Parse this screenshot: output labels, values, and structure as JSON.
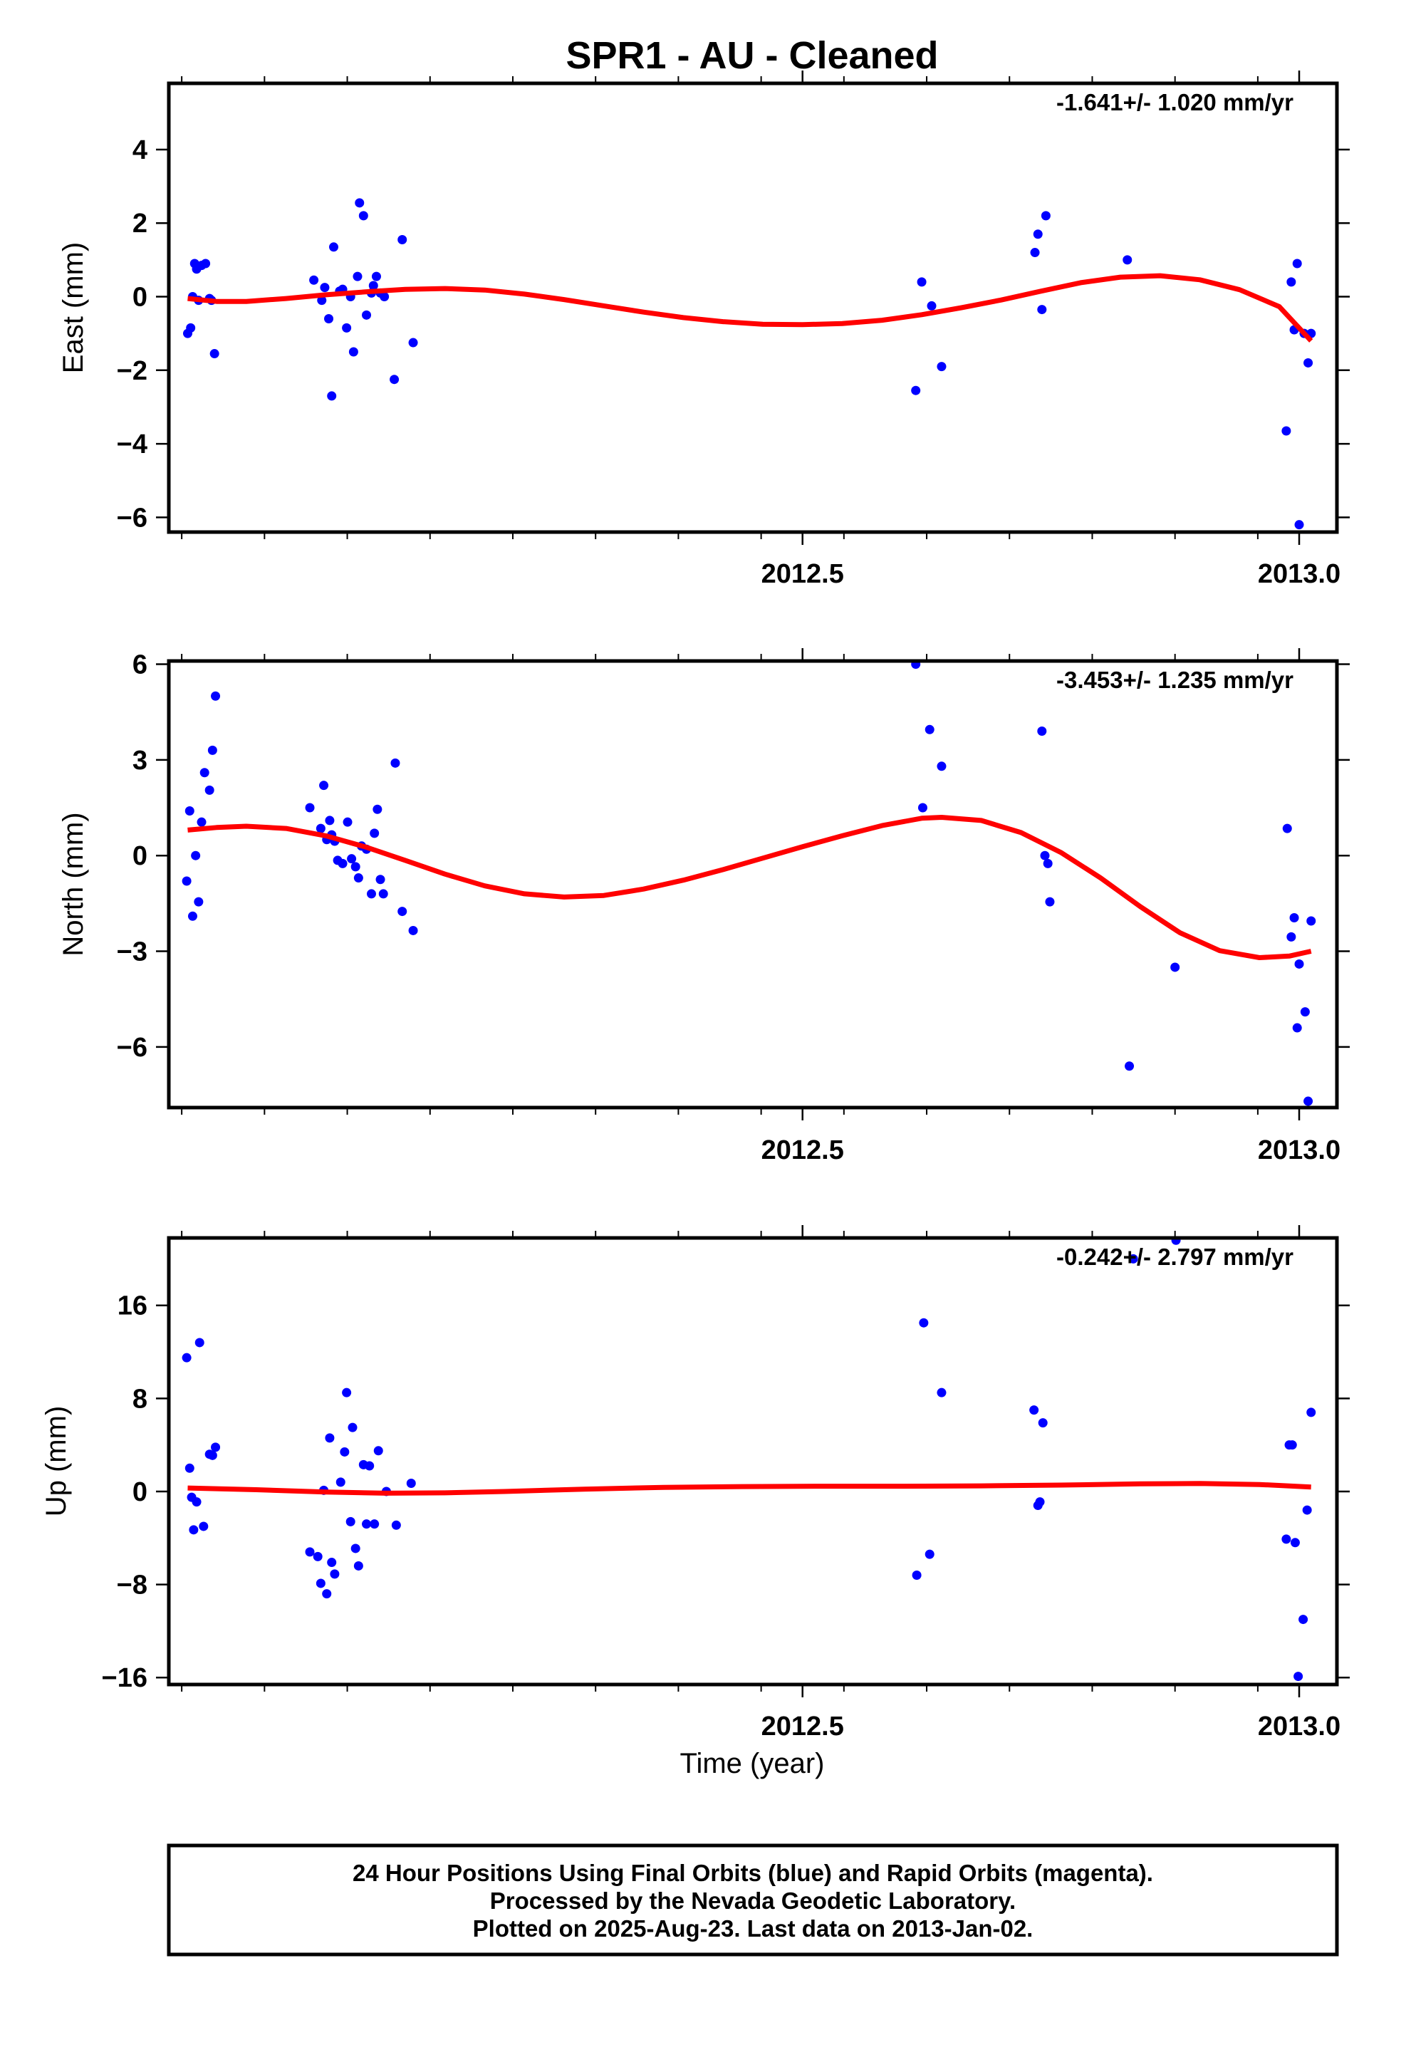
{
  "title": "SPR1  - AU - Cleaned",
  "xlabel": "Time (year)",
  "footer": {
    "line1": "24 Hour Positions Using Final Orbits (blue) and Rapid Orbits (magenta).",
    "line2": "Processed by the Nevada Geodetic Laboratory.",
    "line3": "Plotted on 2025-Aug-23. Last data on 2013-Jan-02."
  },
  "colors": {
    "points": "#0000ff",
    "fit": "#ff0000",
    "frame": "#000000"
  },
  "chart_data": [
    {
      "type": "scatter",
      "name": "east",
      "ylabel": "East (mm)",
      "rate_label": "-1.641+/- 1.020 mm/yr",
      "xlim": [
        2011.862,
        2013.038
      ],
      "ylim": [
        -6.4,
        5.8
      ],
      "yticks": [
        -6,
        -4,
        -2,
        0,
        2,
        4
      ],
      "ytick_labels": [
        "−6",
        "−4",
        "−2",
        "0",
        "2",
        "4"
      ],
      "xticks": [
        2012.5,
        2013.0
      ],
      "xtick_labels": [
        "2012.5",
        "2013.0"
      ],
      "minor_xticks": [
        1.0
      ],
      "points": [
        [
          2011.881,
          -1.0
        ],
        [
          2011.884,
          -0.85
        ],
        [
          2011.886,
          0.0
        ],
        [
          2011.888,
          0.9
        ],
        [
          2011.89,
          0.75
        ],
        [
          2011.892,
          -0.1
        ],
        [
          2011.895,
          0.85
        ],
        [
          2011.899,
          0.9
        ],
        [
          2011.903,
          -0.05
        ],
        [
          2011.905,
          -0.1
        ],
        [
          2011.908,
          -1.55
        ],
        [
          2012.008,
          0.45
        ],
        [
          2012.016,
          -0.1
        ],
        [
          2012.019,
          0.25
        ],
        [
          2012.023,
          -0.6
        ],
        [
          2012.026,
          -2.7
        ],
        [
          2012.028,
          1.35
        ],
        [
          2012.034,
          0.15
        ],
        [
          2012.037,
          0.2
        ],
        [
          2012.041,
          -0.85
        ],
        [
          2012.045,
          0.0
        ],
        [
          2012.048,
          -1.5
        ],
        [
          2012.052,
          0.55
        ],
        [
          2012.054,
          2.55
        ],
        [
          2012.058,
          2.2
        ],
        [
          2012.061,
          -0.5
        ],
        [
          2012.066,
          0.1
        ],
        [
          2012.068,
          0.3
        ],
        [
          2012.071,
          0.55
        ],
        [
          2012.075,
          0.1
        ],
        [
          2012.079,
          0.0
        ],
        [
          2012.089,
          -2.25
        ],
        [
          2012.097,
          1.55
        ],
        [
          2012.108,
          -1.25
        ],
        [
          2012.614,
          -2.55
        ],
        [
          2012.62,
          0.4
        ],
        [
          2012.63,
          -0.25
        ],
        [
          2012.64,
          -1.9
        ],
        [
          2012.734,
          1.2
        ],
        [
          2012.737,
          1.7
        ],
        [
          2012.741,
          -0.35
        ],
        [
          2012.745,
          2.2
        ],
        [
          2012.827,
          1.0
        ],
        [
          2012.987,
          -3.65
        ],
        [
          2012.992,
          0.4
        ],
        [
          2012.995,
          -0.9
        ],
        [
          2012.998,
          0.9
        ],
        [
          2013.0,
          -6.2
        ],
        [
          2013.005,
          -1.0
        ],
        [
          2013.009,
          -1.8
        ],
        [
          2013.012,
          -1.0
        ]
      ],
      "fit": [
        [
          2011.881,
          -0.05
        ],
        [
          2011.91,
          -0.13
        ],
        [
          2011.94,
          -0.13
        ],
        [
          2011.98,
          -0.05
        ],
        [
          2012.02,
          0.05
        ],
        [
          2012.06,
          0.13
        ],
        [
          2012.1,
          0.2
        ],
        [
          2012.14,
          0.22
        ],
        [
          2012.18,
          0.18
        ],
        [
          2012.22,
          0.07
        ],
        [
          2012.26,
          -0.08
        ],
        [
          2012.3,
          -0.25
        ],
        [
          2012.34,
          -0.42
        ],
        [
          2012.38,
          -0.57
        ],
        [
          2012.42,
          -0.68
        ],
        [
          2012.46,
          -0.75
        ],
        [
          2012.5,
          -0.76
        ],
        [
          2012.54,
          -0.73
        ],
        [
          2012.58,
          -0.64
        ],
        [
          2012.62,
          -0.49
        ],
        [
          2012.66,
          -0.3
        ],
        [
          2012.7,
          -0.09
        ],
        [
          2012.74,
          0.15
        ],
        [
          2012.78,
          0.38
        ],
        [
          2012.82,
          0.53
        ],
        [
          2012.86,
          0.57
        ],
        [
          2012.9,
          0.46
        ],
        [
          2012.94,
          0.19
        ],
        [
          2012.98,
          -0.27
        ],
        [
          2013.012,
          -1.2
        ]
      ]
    },
    {
      "type": "scatter",
      "name": "north",
      "ylabel": "North (mm)",
      "rate_label": "-3.453+/- 1.235 mm/yr",
      "xlim": [
        2011.862,
        2013.038
      ],
      "ylim": [
        -7.9,
        6.1
      ],
      "yticks": [
        -6,
        -3,
        0,
        3,
        6
      ],
      "ytick_labels": [
        "−6",
        "−3",
        "0",
        "3",
        "6"
      ],
      "xticks": [
        2012.5,
        2013.0
      ],
      "xtick_labels": [
        "2012.5",
        "2013.0"
      ],
      "points": [
        [
          2011.88,
          -0.8
        ],
        [
          2011.883,
          1.4
        ],
        [
          2011.886,
          -1.9
        ],
        [
          2011.889,
          0.0
        ],
        [
          2011.892,
          -1.45
        ],
        [
          2011.895,
          1.05
        ],
        [
          2011.898,
          2.6
        ],
        [
          2011.903,
          2.05
        ],
        [
          2011.906,
          3.3
        ],
        [
          2011.909,
          5.0
        ],
        [
          2012.004,
          1.5
        ],
        [
          2012.015,
          0.85
        ],
        [
          2012.018,
          2.2
        ],
        [
          2012.021,
          0.5
        ],
        [
          2012.024,
          1.1
        ],
        [
          2012.026,
          0.65
        ],
        [
          2012.029,
          0.45
        ],
        [
          2012.032,
          -0.15
        ],
        [
          2012.037,
          -0.25
        ],
        [
          2012.042,
          1.05
        ],
        [
          2012.046,
          -0.1
        ],
        [
          2012.05,
          -0.35
        ],
        [
          2012.053,
          -0.7
        ],
        [
          2012.056,
          0.3
        ],
        [
          2012.061,
          0.2
        ],
        [
          2012.066,
          -1.2
        ],
        [
          2012.069,
          0.7
        ],
        [
          2012.072,
          1.45
        ],
        [
          2012.075,
          -0.75
        ],
        [
          2012.078,
          -1.2
        ],
        [
          2012.09,
          2.9
        ],
        [
          2012.097,
          -1.75
        ],
        [
          2012.108,
          -2.35
        ],
        [
          2012.614,
          6.0
        ],
        [
          2012.621,
          1.5
        ],
        [
          2012.628,
          3.95
        ],
        [
          2012.64,
          2.8
        ],
        [
          2012.741,
          3.9
        ],
        [
          2012.744,
          0.0
        ],
        [
          2012.747,
          -0.25
        ],
        [
          2012.749,
          -1.45
        ],
        [
          2012.829,
          -6.6
        ],
        [
          2012.875,
          -3.5
        ],
        [
          2012.988,
          0.85
        ],
        [
          2012.992,
          -2.55
        ],
        [
          2012.995,
          -1.95
        ],
        [
          2012.998,
          -5.4
        ],
        [
          2013.0,
          -3.4
        ],
        [
          2013.006,
          -4.9
        ],
        [
          2013.009,
          -7.7
        ],
        [
          2013.012,
          -2.05
        ]
      ],
      "fit": [
        [
          2011.881,
          0.8
        ],
        [
          2011.91,
          0.88
        ],
        [
          2011.94,
          0.92
        ],
        [
          2011.98,
          0.85
        ],
        [
          2012.02,
          0.62
        ],
        [
          2012.06,
          0.27
        ],
        [
          2012.1,
          -0.15
        ],
        [
          2012.14,
          -0.58
        ],
        [
          2012.18,
          -0.95
        ],
        [
          2012.22,
          -1.2
        ],
        [
          2012.26,
          -1.3
        ],
        [
          2012.3,
          -1.25
        ],
        [
          2012.34,
          -1.05
        ],
        [
          2012.38,
          -0.77
        ],
        [
          2012.42,
          -0.44
        ],
        [
          2012.46,
          -0.08
        ],
        [
          2012.5,
          0.28
        ],
        [
          2012.54,
          0.62
        ],
        [
          2012.58,
          0.94
        ],
        [
          2012.62,
          1.17
        ],
        [
          2012.64,
          1.2
        ],
        [
          2012.68,
          1.1
        ],
        [
          2012.72,
          0.72
        ],
        [
          2012.76,
          0.1
        ],
        [
          2012.8,
          -0.7
        ],
        [
          2012.84,
          -1.6
        ],
        [
          2012.88,
          -2.42
        ],
        [
          2012.92,
          -2.98
        ],
        [
          2012.96,
          -3.2
        ],
        [
          2012.99,
          -3.15
        ],
        [
          2013.012,
          -3.0
        ]
      ]
    },
    {
      "type": "scatter",
      "name": "up",
      "ylabel": "Up (mm)",
      "rate_label": "-0.242+/- 2.797 mm/yr",
      "xlim": [
        2011.862,
        2013.038
      ],
      "ylim": [
        -16.6,
        21.8
      ],
      "yticks": [
        -16,
        -8,
        0,
        8,
        16
      ],
      "ytick_labels": [
        "−16",
        "−8",
        "0",
        "8",
        "16"
      ],
      "xticks": [
        2012.5,
        2013.0
      ],
      "xtick_labels": [
        "2012.5",
        "2013.0"
      ],
      "points": [
        [
          2011.88,
          11.5
        ],
        [
          2011.883,
          2.0
        ],
        [
          2011.885,
          -0.5
        ],
        [
          2011.887,
          -3.3
        ],
        [
          2011.89,
          -0.9
        ],
        [
          2011.893,
          12.8
        ],
        [
          2011.897,
          -3.0
        ],
        [
          2011.903,
          3.2
        ],
        [
          2011.906,
          3.1
        ],
        [
          2011.909,
          3.8
        ],
        [
          2012.004,
          -5.2
        ],
        [
          2012.012,
          -5.6
        ],
        [
          2012.015,
          -7.9
        ],
        [
          2012.018,
          0.1
        ],
        [
          2012.021,
          -8.8
        ],
        [
          2012.024,
          4.6
        ],
        [
          2012.026,
          -6.1
        ],
        [
          2012.029,
          -7.1
        ],
        [
          2012.035,
          0.8
        ],
        [
          2012.039,
          3.4
        ],
        [
          2012.041,
          8.5
        ],
        [
          2012.045,
          -2.6
        ],
        [
          2012.047,
          5.5
        ],
        [
          2012.05,
          -4.9
        ],
        [
          2012.053,
          -6.4
        ],
        [
          2012.058,
          2.3
        ],
        [
          2012.061,
          -2.8
        ],
        [
          2012.064,
          2.2
        ],
        [
          2012.069,
          -2.8
        ],
        [
          2012.073,
          3.5
        ],
        [
          2012.081,
          0.0
        ],
        [
          2012.091,
          -2.9
        ],
        [
          2012.106,
          0.7
        ],
        [
          2012.615,
          -7.2
        ],
        [
          2012.622,
          14.5
        ],
        [
          2012.628,
          -5.4
        ],
        [
          2012.64,
          8.5
        ],
        [
          2012.733,
          7.0
        ],
        [
          2012.737,
          -1.2
        ],
        [
          2012.739,
          -0.9
        ],
        [
          2012.742,
          5.9
        ],
        [
          2012.833,
          20.0
        ],
        [
          2012.876,
          21.6
        ],
        [
          2012.987,
          -4.1
        ],
        [
          2012.99,
          4.0
        ],
        [
          2012.993,
          4.0
        ],
        [
          2012.996,
          -4.4
        ],
        [
          2012.999,
          -15.9
        ],
        [
          2013.004,
          -11.0
        ],
        [
          2013.008,
          -1.6
        ],
        [
          2013.012,
          6.8
        ]
      ],
      "fit": [
        [
          2011.881,
          0.3
        ],
        [
          2011.95,
          0.15
        ],
        [
          2012.02,
          -0.05
        ],
        [
          2012.08,
          -0.15
        ],
        [
          2012.14,
          -0.12
        ],
        [
          2012.2,
          0.0
        ],
        [
          2012.28,
          0.2
        ],
        [
          2012.36,
          0.35
        ],
        [
          2012.44,
          0.42
        ],
        [
          2012.52,
          0.45
        ],
        [
          2012.6,
          0.45
        ],
        [
          2012.68,
          0.48
        ],
        [
          2012.76,
          0.55
        ],
        [
          2012.84,
          0.65
        ],
        [
          2012.9,
          0.68
        ],
        [
          2012.96,
          0.6
        ],
        [
          2013.012,
          0.38
        ]
      ]
    }
  ]
}
